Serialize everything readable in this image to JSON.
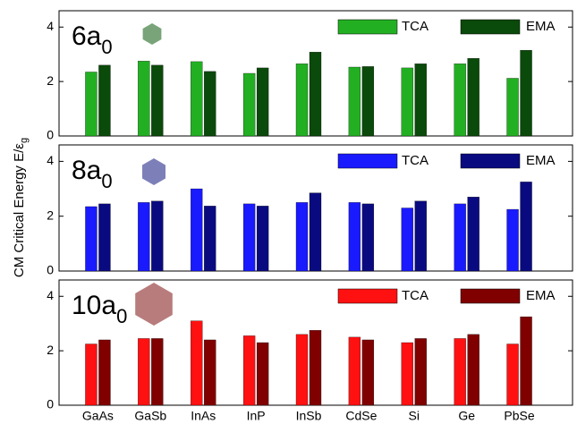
{
  "ylabel": {
    "text": "CM Critical Energy E/ε",
    "subscript": "g"
  },
  "chart_data": [
    {
      "type": "bar",
      "label": "6a",
      "label_sub": "0",
      "ylim": [
        0,
        4.6
      ],
      "yticks": [
        0,
        2,
        4
      ],
      "legend": "upper right",
      "series": [
        {
          "name": "TCA",
          "color": "#22b022",
          "values": [
            2.35,
            2.75,
            2.73,
            2.3,
            2.65,
            2.53,
            2.5,
            2.65,
            2.12
          ]
        },
        {
          "name": "EMA",
          "color": "#0a4a0a",
          "values": [
            2.6,
            2.6,
            2.37,
            2.5,
            3.08,
            2.55,
            2.65,
            2.85,
            3.15
          ]
        }
      ]
    },
    {
      "type": "bar",
      "label": "8a",
      "label_sub": "0",
      "ylim": [
        0,
        4.6
      ],
      "yticks": [
        0,
        2,
        4
      ],
      "legend": "upper right",
      "series": [
        {
          "name": "TCA",
          "color": "#1a1aff",
          "values": [
            2.35,
            2.5,
            3.0,
            2.45,
            2.5,
            2.5,
            2.3,
            2.45,
            2.25
          ]
        },
        {
          "name": "EMA",
          "color": "#0a0a80",
          "values": [
            2.45,
            2.55,
            2.37,
            2.37,
            2.85,
            2.45,
            2.55,
            2.7,
            3.25
          ]
        }
      ]
    },
    {
      "type": "bar",
      "label": "10a",
      "label_sub": "0",
      "categories": [
        "GaAs",
        "GaSb",
        "InAs",
        "InP",
        "InSb",
        "CdSe",
        "Si",
        "Ge",
        "PbSe"
      ],
      "ylim": [
        0,
        4.6
      ],
      "yticks": [
        0,
        2,
        4
      ],
      "legend": "upper right",
      "series": [
        {
          "name": "TCA",
          "color": "#ff1111",
          "values": [
            2.25,
            2.45,
            3.1,
            2.55,
            2.6,
            2.5,
            2.3,
            2.45,
            2.25
          ]
        },
        {
          "name": "EMA",
          "color": "#800000",
          "values": [
            2.4,
            2.45,
            2.4,
            2.3,
            2.75,
            2.4,
            2.45,
            2.6,
            3.25
          ]
        }
      ]
    }
  ]
}
